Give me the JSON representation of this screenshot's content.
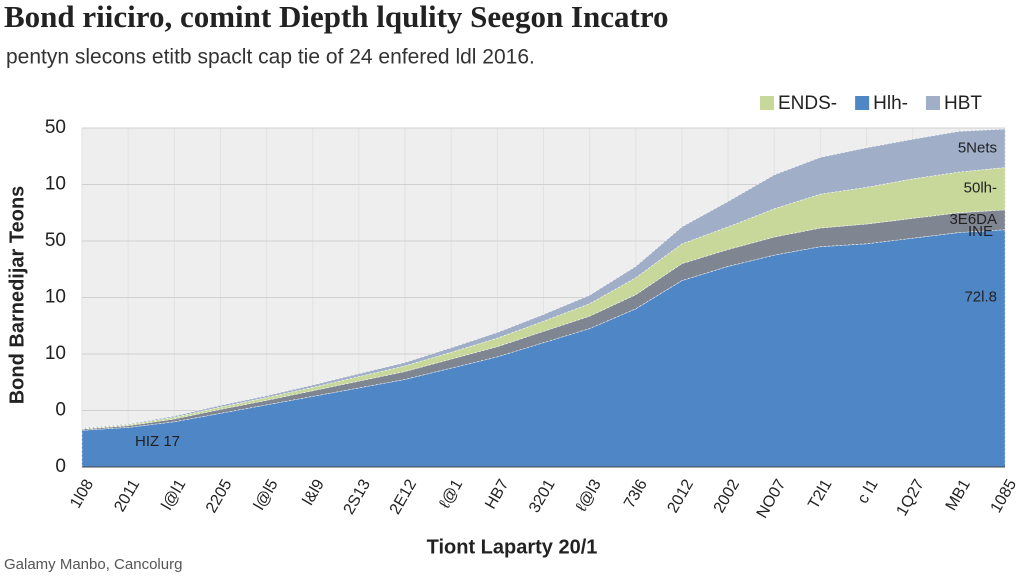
{
  "chart_data": {
    "type": "stacked_area",
    "title": "Bond riiciro, comint Diepth lqulity Seegon Incatro",
    "subtitle": "pentyn slecons etitb spaclt cap tie of 24 enfered ldl 2016.",
    "y_label": "Bond Barnedijar Teons",
    "x_label": "Tiont Laparty 20/1",
    "source": "Galamy Manbo, Cancolurg",
    "categories": [
      "1l08",
      "2011",
      "l@l1",
      "2205",
      "l@l5",
      "l&l9",
      "2S13",
      "2E12",
      "ℓ@1",
      "HB7",
      "3201",
      "ℓ@l3",
      "73l6",
      "2012",
      "2002",
      "NO07",
      "T2l1",
      "c l1",
      "1Q27",
      "MB1",
      "1085"
    ],
    "series": [
      {
        "name": "72l.8",
        "color": "#4f86c6",
        "values": [
          0.65,
          0.7,
          0.8,
          0.95,
          1.1,
          1.25,
          1.4,
          1.55,
          1.75,
          1.95,
          2.2,
          2.45,
          2.8,
          3.3,
          3.55,
          3.75,
          3.9,
          3.95,
          4.05,
          4.15,
          4.2
        ]
      },
      {
        "name": "3E6DA",
        "color": "#7f8691",
        "values": [
          0.02,
          0.03,
          0.05,
          0.07,
          0.08,
          0.1,
          0.12,
          0.14,
          0.16,
          0.18,
          0.2,
          0.22,
          0.25,
          0.3,
          0.3,
          0.32,
          0.33,
          0.35,
          0.35,
          0.35,
          0.35
        ]
      },
      {
        "name": "50lh-",
        "color": "#c8d89a",
        "values": [
          0.01,
          0.02,
          0.03,
          0.04,
          0.05,
          0.06,
          0.08,
          0.1,
          0.12,
          0.15,
          0.18,
          0.22,
          0.3,
          0.35,
          0.4,
          0.5,
          0.6,
          0.65,
          0.7,
          0.72,
          0.75
        ]
      },
      {
        "name": "5Nets",
        "color": "#a0aec8",
        "values": [
          0.01,
          0.01,
          0.02,
          0.03,
          0.03,
          0.04,
          0.05,
          0.06,
          0.08,
          0.1,
          0.12,
          0.15,
          0.2,
          0.3,
          0.45,
          0.6,
          0.65,
          0.7,
          0.7,
          0.72,
          0.68
        ]
      }
    ],
    "legend": [
      {
        "name": "ENDS-",
        "color": "#c8d89a"
      },
      {
        "name": "Hlh-",
        "color": "#4f86c6"
      },
      {
        "name": "HBT",
        "color": "#a0aec8"
      }
    ],
    "annotations": [
      "HIZ 17",
      "INE"
    ],
    "ylim": [
      0,
      6
    ],
    "yticks": [
      0,
      {
        "value": 1,
        "label": "0"
      },
      {
        "value": 2,
        "label": "10"
      },
      {
        "value": 3,
        "label": "10"
      },
      {
        "value": 4,
        "label": "50"
      },
      {
        "value": 5,
        "label": "10"
      },
      {
        "value": 6,
        "label": "50"
      }
    ],
    "grid": true
  }
}
